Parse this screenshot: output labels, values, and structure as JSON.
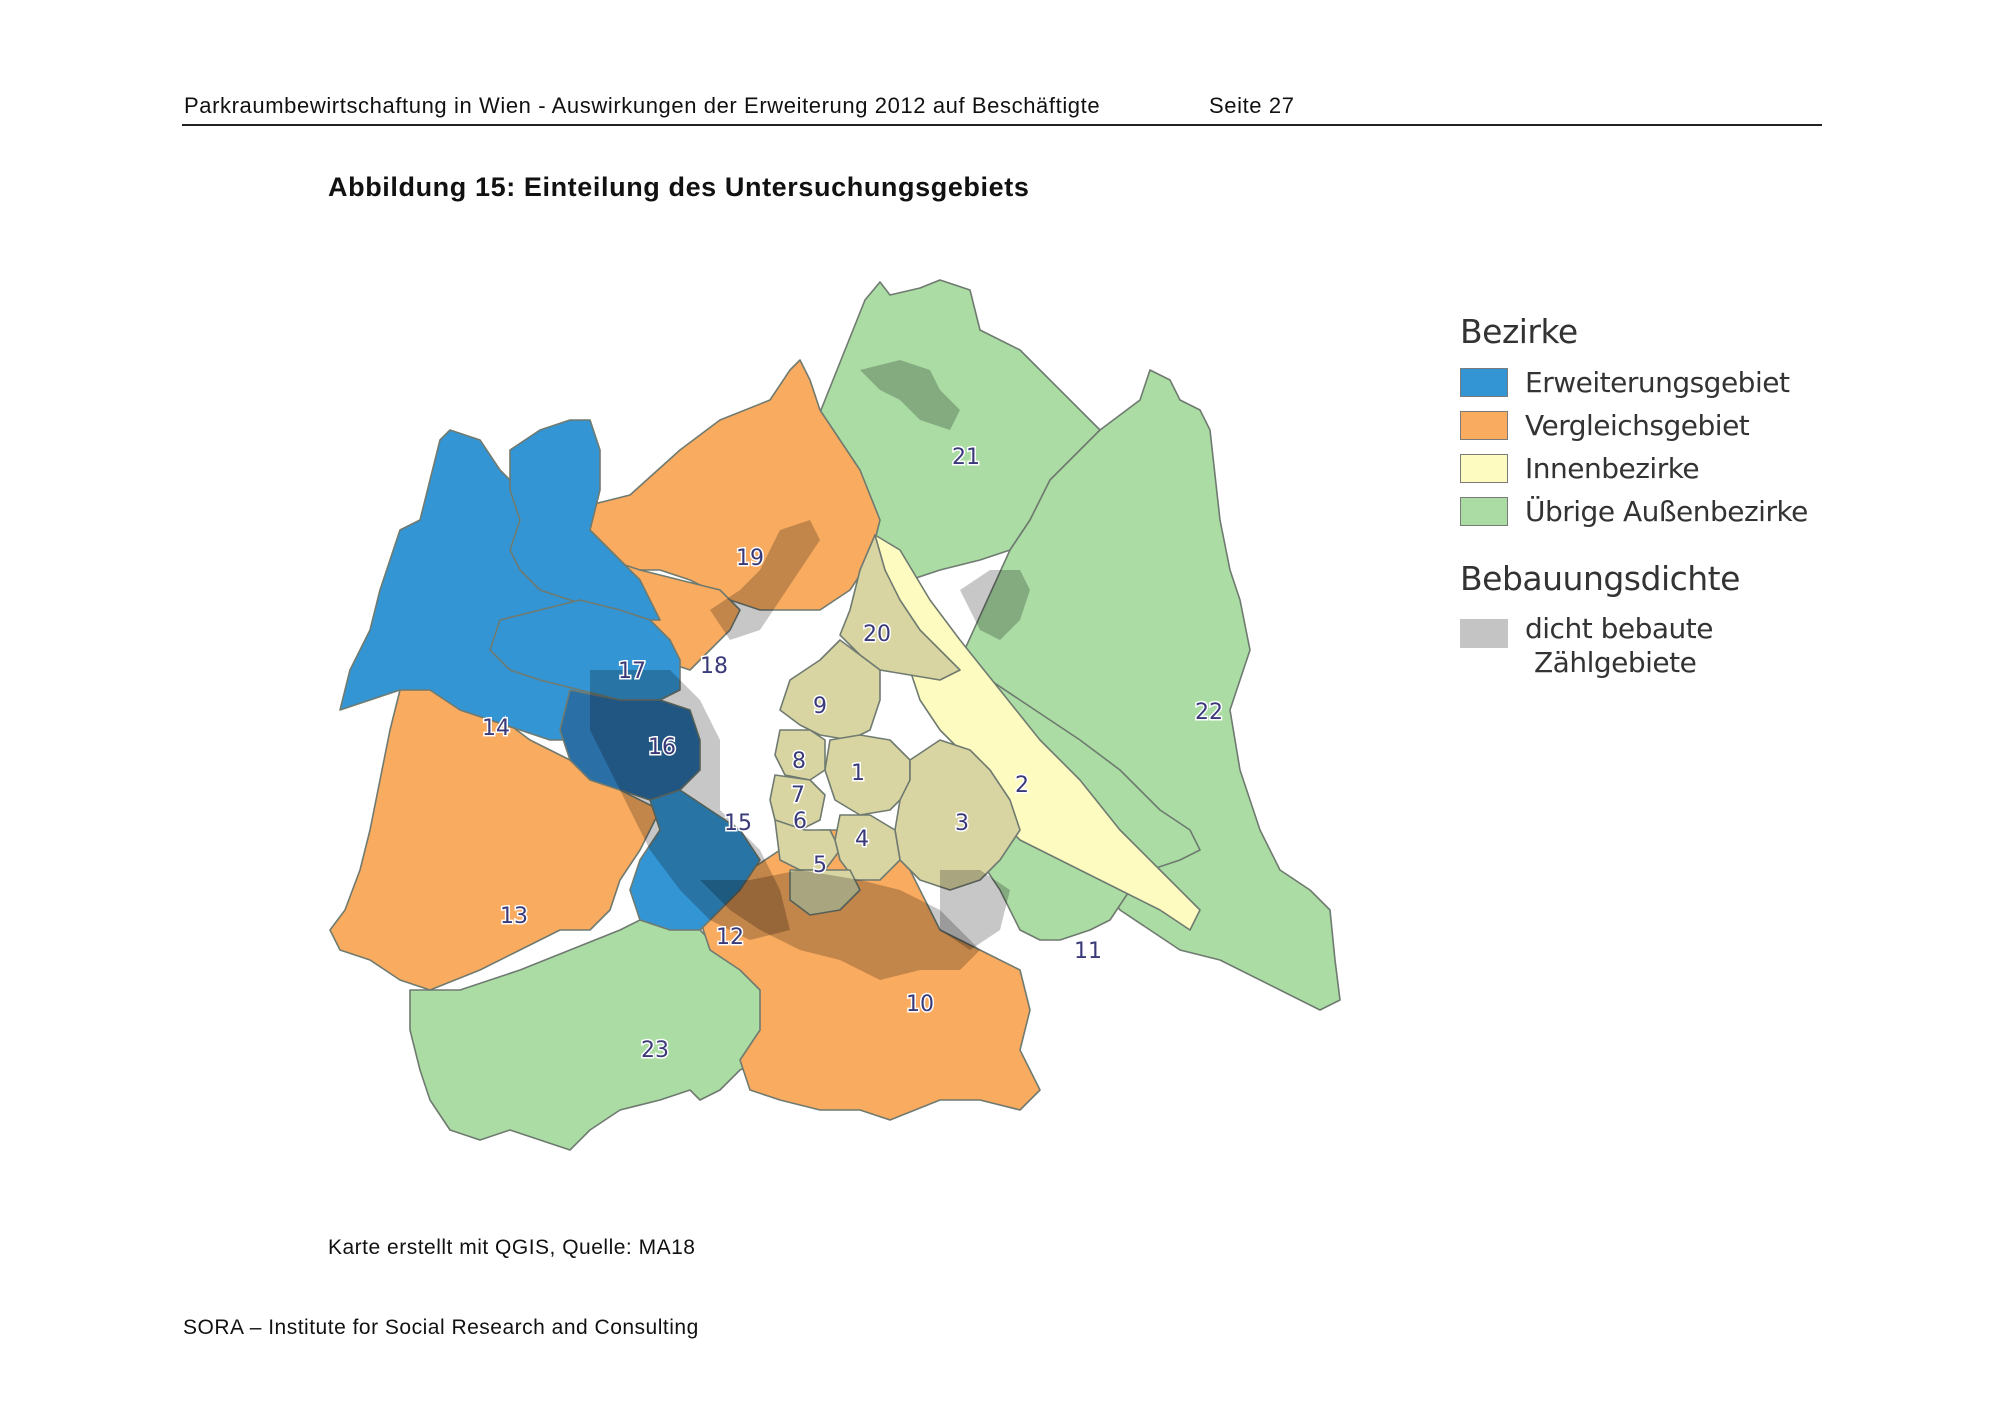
{
  "header": {
    "title": "Parkraumbewirtschaftung in Wien - Auswirkungen der Erweiterung 2012 auf Beschäftigte",
    "page": "Seite 27"
  },
  "figure": {
    "caption": "Abbildung 15: Einteilung des Untersuchungsgebiets",
    "note": "Karte erstellt mit QGIS, Quelle: MA18"
  },
  "footer": {
    "org": "SORA – Institute for Social Research and Consulting"
  },
  "legend": {
    "title_bezirke": "Bezirke",
    "items": [
      {
        "label": "Erweiterungsgebiet",
        "color": "#3395d4"
      },
      {
        "label": "Vergleichsgebiet",
        "color": "#f9ab5f"
      },
      {
        "label": "Innenbezirke",
        "color": "#fdfbbf"
      },
      {
        "label": "Übrige Außenbezirke",
        "color": "#aadca4"
      }
    ],
    "title_dichte": "Bebauungsdichte",
    "density": {
      "line1": "dicht bebaute",
      "line2": "Zählgebiete",
      "color": "#c4c4c4"
    }
  },
  "map": {
    "district_labels": [
      "1",
      "2",
      "3",
      "4",
      "5",
      "6",
      "7",
      "8",
      "9",
      "10",
      "11",
      "12",
      "13",
      "14",
      "15",
      "16",
      "17",
      "18",
      "19",
      "20",
      "21",
      "22",
      "23"
    ]
  }
}
